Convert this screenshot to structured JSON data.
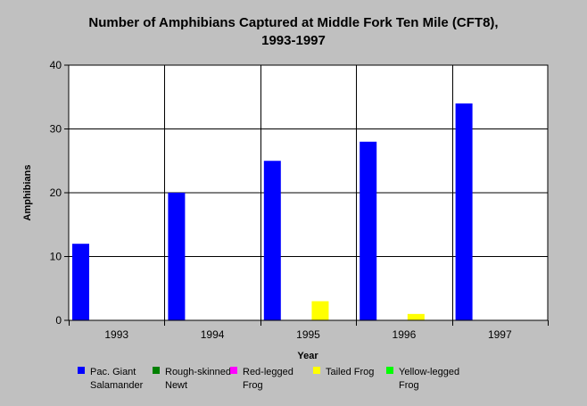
{
  "chart_data": {
    "type": "bar",
    "title_lines": [
      "Number of Amphibians Captured at Middle Fork Ten Mile (CFT8),",
      "1993-1997"
    ],
    "xlabel": "Year",
    "ylabel": "Amphibians",
    "ylim": [
      0,
      40
    ],
    "yticks": [
      0,
      10,
      20,
      30,
      40
    ],
    "grid": true,
    "legend_position": "bottom",
    "categories": [
      "1993",
      "1994",
      "1995",
      "1996",
      "1997"
    ],
    "series": [
      {
        "name": "Pac. Giant Salamander",
        "legend_lines": [
          "Pac. Giant",
          "Salamander"
        ],
        "color": "#0000ff",
        "values": [
          12,
          20,
          25,
          28,
          34
        ]
      },
      {
        "name": "Rough-skinned Newt",
        "legend_lines": [
          "Rough-skinned",
          "Newt"
        ],
        "color": "#008000",
        "values": [
          0,
          0,
          0,
          0,
          0
        ]
      },
      {
        "name": "Red-legged Frog",
        "legend_lines": [
          "Red-legged",
          "Frog"
        ],
        "color": "#ff00ff",
        "values": [
          0,
          0,
          0,
          0,
          0
        ]
      },
      {
        "name": "Tailed Frog",
        "legend_lines": [
          "Tailed Frog"
        ],
        "color": "#ffff00",
        "values": [
          0,
          0,
          3,
          1,
          0
        ]
      },
      {
        "name": "Yellow-legged Frog",
        "legend_lines": [
          "Yellow-legged",
          "Frog"
        ],
        "color": "#00ff00",
        "values": [
          0,
          0,
          0,
          0,
          0
        ]
      }
    ]
  }
}
